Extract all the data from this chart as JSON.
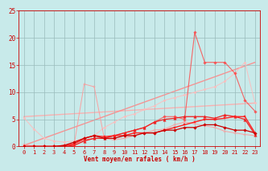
{
  "background_color": "#c8eaea",
  "grid_color": "#99bbbb",
  "xlabel": "Vent moyen/en rafales ( km/h )",
  "xlabel_color": "#cc0000",
  "tick_color": "#cc0000",
  "xlim": [
    -0.5,
    23.5
  ],
  "ylim": [
    0,
    25
  ],
  "xticks": [
    0,
    1,
    2,
    3,
    4,
    5,
    6,
    7,
    8,
    9,
    10,
    11,
    12,
    13,
    14,
    15,
    16,
    17,
    18,
    19,
    20,
    21,
    22,
    23
  ],
  "yticks": [
    0,
    5,
    10,
    15,
    20,
    25
  ],
  "series": [
    {
      "comment": "light pink trend line - diagonal straight from ~5.5 at x=0 to ~8 at x=23",
      "x": [
        0,
        23
      ],
      "y": [
        5.5,
        8.0
      ],
      "color": "#ffaaaa",
      "marker": null,
      "linewidth": 1.0,
      "alpha": 0.9,
      "zorder": 1
    },
    {
      "comment": "medium pink trend line - diagonal from 0 to ~15.5",
      "x": [
        0,
        23
      ],
      "y": [
        0.2,
        15.5
      ],
      "color": "#ff8888",
      "marker": null,
      "linewidth": 1.0,
      "alpha": 0.9,
      "zorder": 1
    },
    {
      "comment": "light pink scattered line with diamonds - rises from ~5 to ~13 then drops",
      "x": [
        0,
        1,
        2,
        3,
        4,
        5,
        6,
        7,
        8,
        9,
        10,
        11,
        12,
        13,
        14,
        15,
        16,
        17,
        18,
        19,
        20,
        21,
        22,
        23
      ],
      "y": [
        5.3,
        3.2,
        1.5,
        1.0,
        0.8,
        1.0,
        1.5,
        2.0,
        3.5,
        4.5,
        5.5,
        6.0,
        6.8,
        7.5,
        8.5,
        9.0,
        9.5,
        10.0,
        10.5,
        11.0,
        12.0,
        13.5,
        15.5,
        8.0
      ],
      "color": "#ffbbbb",
      "marker": "D",
      "markersize": 1.5,
      "linewidth": 0.7,
      "alpha": 0.9,
      "zorder": 2
    },
    {
      "comment": "pink jagged line - spikes at x=6 to ~11.5 then low",
      "x": [
        0,
        1,
        2,
        3,
        4,
        5,
        6,
        7,
        8,
        9,
        10,
        11,
        12,
        13,
        14,
        15,
        16,
        17,
        18,
        19,
        20,
        21,
        22,
        23
      ],
      "y": [
        0.3,
        0.1,
        0.1,
        0.1,
        0.2,
        0.3,
        11.5,
        11.0,
        1.5,
        1.2,
        1.5,
        2.0,
        2.5,
        3.0,
        3.2,
        4.0,
        4.5,
        4.2,
        3.8,
        3.5,
        2.8,
        2.5,
        2.2,
        2.0
      ],
      "color": "#ff9999",
      "marker": "+",
      "markersize": 2.5,
      "linewidth": 0.7,
      "alpha": 0.9,
      "zorder": 3
    },
    {
      "comment": "red line with peak at x=17 ~21 - main prominent spike",
      "x": [
        0,
        1,
        2,
        3,
        4,
        5,
        6,
        7,
        8,
        9,
        10,
        11,
        12,
        13,
        14,
        15,
        16,
        17,
        18,
        19,
        20,
        21,
        22,
        23
      ],
      "y": [
        0.0,
        0.0,
        0.0,
        0.0,
        0.2,
        0.5,
        1.2,
        1.5,
        1.5,
        2.0,
        2.5,
        3.0,
        3.5,
        4.5,
        5.5,
        5.5,
        5.0,
        21.0,
        15.5,
        15.5,
        15.5,
        13.5,
        8.5,
        6.5
      ],
      "color": "#ff4444",
      "marker": "D",
      "markersize": 1.8,
      "linewidth": 0.8,
      "alpha": 0.8,
      "zorder": 4
    },
    {
      "comment": "darker red smooth rising line with triangles",
      "x": [
        0,
        1,
        2,
        3,
        4,
        5,
        6,
        7,
        8,
        9,
        10,
        11,
        12,
        13,
        14,
        15,
        16,
        17,
        18,
        19,
        20,
        21,
        22,
        23
      ],
      "y": [
        0.0,
        0.0,
        0.0,
        0.0,
        0.0,
        0.2,
        1.0,
        1.5,
        1.5,
        2.0,
        2.5,
        3.0,
        3.5,
        4.5,
        5.0,
        5.2,
        5.5,
        5.5,
        5.5,
        5.2,
        5.8,
        5.5,
        5.0,
        2.2
      ],
      "color": "#ee2222",
      "marker": "^",
      "markersize": 2.5,
      "linewidth": 0.9,
      "alpha": 1.0,
      "zorder": 5
    },
    {
      "comment": "dark red line with squares - gradual rise",
      "x": [
        0,
        1,
        2,
        3,
        4,
        5,
        6,
        7,
        8,
        9,
        10,
        11,
        12,
        13,
        14,
        15,
        16,
        17,
        18,
        19,
        20,
        21,
        22,
        23
      ],
      "y": [
        0.0,
        0.0,
        0.0,
        0.0,
        0.0,
        0.5,
        1.5,
        2.0,
        1.8,
        2.0,
        2.0,
        2.5,
        2.5,
        2.5,
        3.0,
        3.5,
        4.0,
        4.5,
        5.0,
        5.0,
        5.2,
        5.5,
        5.5,
        2.5
      ],
      "color": "#ff2222",
      "marker": "s",
      "markersize": 2.0,
      "linewidth": 1.0,
      "alpha": 1.0,
      "zorder": 6
    },
    {
      "comment": "darkest red line - gradual rise to ~3",
      "x": [
        0,
        1,
        2,
        3,
        4,
        5,
        6,
        7,
        8,
        9,
        10,
        11,
        12,
        13,
        14,
        15,
        16,
        17,
        18,
        19,
        20,
        21,
        22,
        23
      ],
      "y": [
        0.0,
        0.0,
        0.0,
        0.0,
        0.2,
        0.8,
        1.5,
        2.0,
        1.5,
        1.5,
        2.0,
        2.0,
        2.5,
        2.5,
        3.0,
        3.0,
        3.5,
        3.5,
        4.0,
        4.0,
        3.5,
        3.0,
        3.0,
        2.5
      ],
      "color": "#cc0000",
      "marker": "D",
      "markersize": 1.8,
      "linewidth": 0.9,
      "alpha": 1.0,
      "zorder": 7
    }
  ]
}
